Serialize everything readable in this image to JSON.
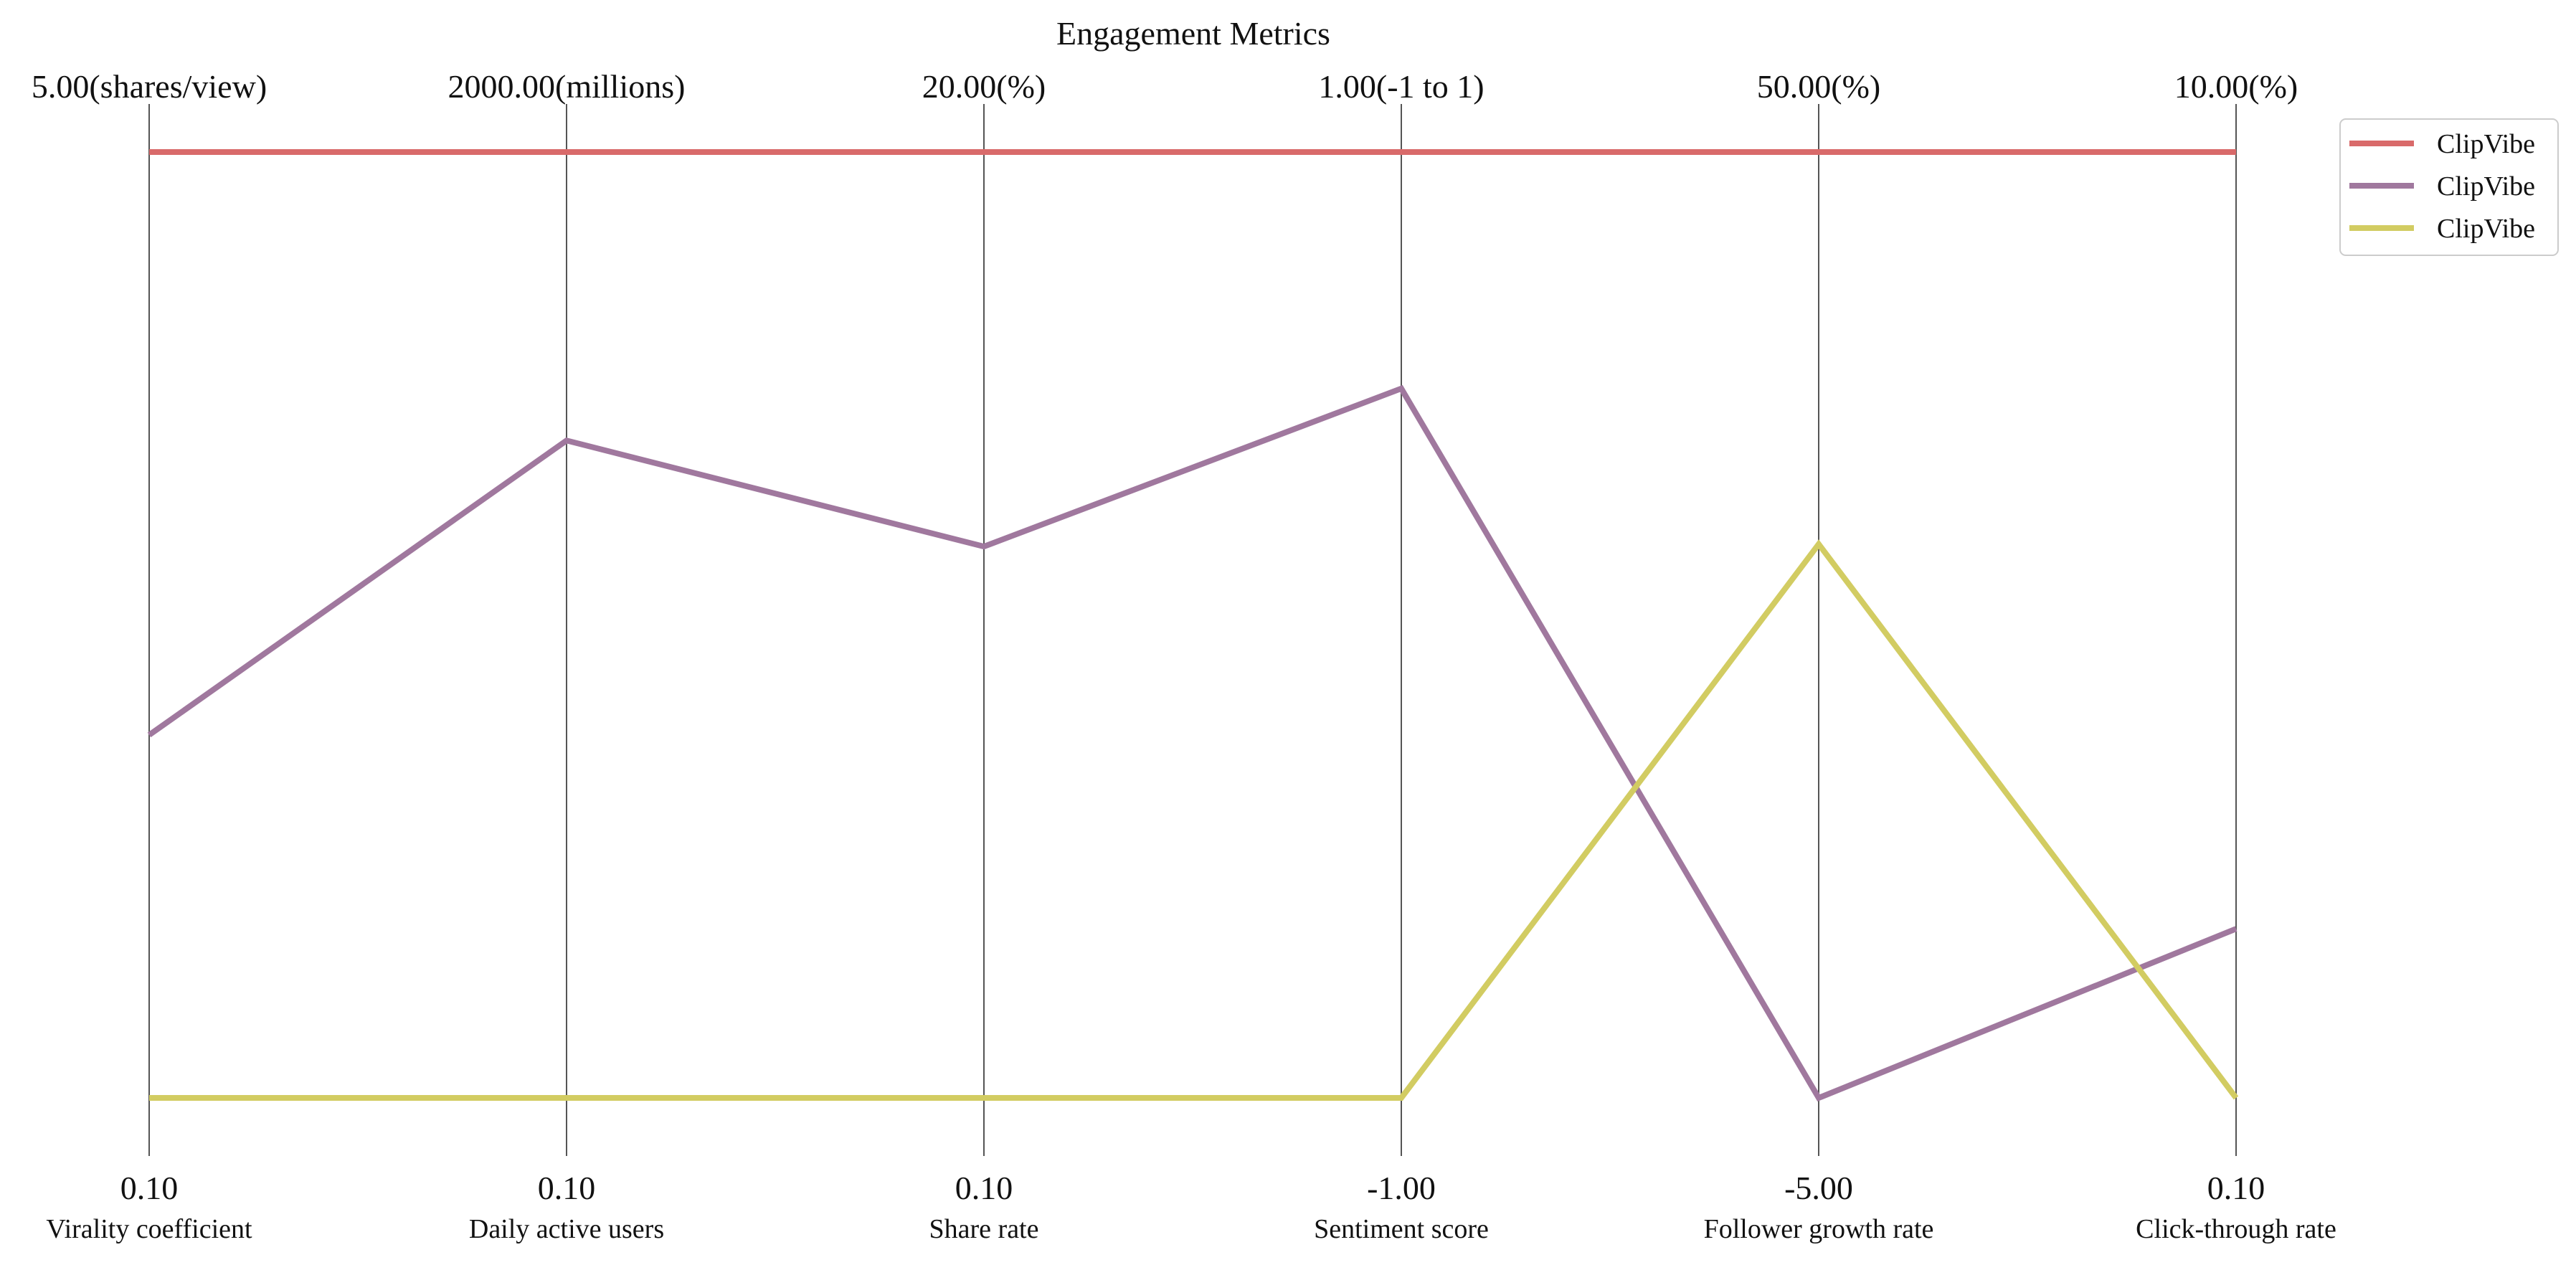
{
  "chart_data": {
    "type": "parallel-coordinates",
    "title": "Engagement Metrics",
    "axes": [
      {
        "name": "Virality coefficient",
        "min": 0.1,
        "max": 5.0,
        "min_label": "0.10",
        "max_label": "5.00(shares/view)"
      },
      {
        "name": "Daily active users",
        "min": 0.1,
        "max": 2000.0,
        "min_label": "0.10",
        "max_label": "2000.00(millions)"
      },
      {
        "name": "Share rate",
        "min": 0.1,
        "max": 20.0,
        "min_label": "0.10",
        "max_label": "20.00(%)"
      },
      {
        "name": "Sentiment score",
        "min": -1.0,
        "max": 1.0,
        "min_label": "-1.00",
        "max_label": "1.00(-1 to 1)"
      },
      {
        "name": "Follower growth rate",
        "min": -5.0,
        "max": 50.0,
        "min_label": "-5.00",
        "max_label": "50.00(%)"
      },
      {
        "name": "Click-through rate",
        "min": 0.1,
        "max": 10.0,
        "min_label": "0.10",
        "max_label": "10.00(%)"
      }
    ],
    "series": [
      {
        "name": "ClipVibe",
        "color": "#d96a6a",
        "values": [
          5.0,
          2000.0,
          20.0,
          1.0,
          50.0,
          10.0
        ]
      },
      {
        "name": "ClipVibe",
        "color": "#a0789e",
        "values": [
          1.98,
          1390.0,
          11.7,
          0.5,
          -5.0,
          1.87
        ]
      },
      {
        "name": "ClipVibe",
        "color": "#d2cc62",
        "values": [
          0.1,
          0.1,
          0.1,
          -1.0,
          27.2,
          0.1
        ]
      }
    ],
    "legend_position": "top-right",
    "grid": false
  }
}
